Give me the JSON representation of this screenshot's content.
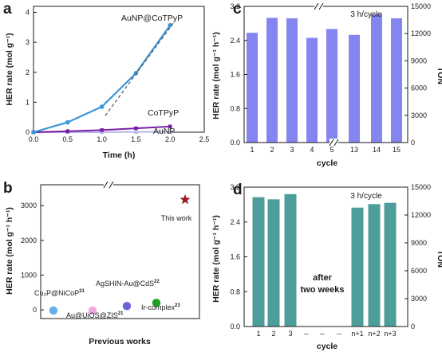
{
  "chart_data": [
    {
      "id": "a",
      "panel_label": "a",
      "type": "line",
      "xlabel": "Time (h)",
      "ylabel": "HER rate (mol g⁻¹)",
      "xlim": [
        0,
        2.5
      ],
      "ylim": [
        0,
        4.2
      ],
      "xticks": [
        "0.0",
        "0.5",
        "1.0",
        "1.5",
        "2.0",
        "2.5"
      ],
      "yticks": [
        "0",
        "1",
        "2",
        "3",
        "4"
      ],
      "series": [
        {
          "name": "AuNP@CoTPyP",
          "x": [
            0,
            0.5,
            1.0,
            1.5,
            2.0
          ],
          "y": [
            0,
            0.33,
            0.85,
            1.97,
            3.57
          ],
          "color": "#3a96d8"
        },
        {
          "name": "CoTPyP",
          "x": [
            0,
            0.5,
            1.0,
            1.5,
            2.0
          ],
          "y": [
            0,
            0.03,
            0.07,
            0.13,
            0.19
          ],
          "color": "#7a1fa6"
        },
        {
          "name": "AuNP",
          "x": [
            0,
            0.5,
            1.0,
            1.5,
            2.0
          ],
          "y": [
            0,
            0.0,
            0.0,
            0.01,
            0.01
          ],
          "color": "#b8b8e8"
        }
      ],
      "dashed_fit": {
        "x": [
          1.05,
          2.05
        ],
        "y": [
          0.55,
          3.65
        ]
      }
    },
    {
      "id": "c",
      "panel_label": "c",
      "type": "bar",
      "annotation": "3 h/cycle",
      "xlabel": "cycle",
      "ylabel": "HER rate (mol g⁻¹ h⁻¹)",
      "ylabel_right": "TON",
      "ylim": [
        0,
        3.2
      ],
      "ylim_right": [
        0,
        15000
      ],
      "yticks": [
        "0.0",
        "0.8",
        "1.6",
        "2.4",
        "3.2"
      ],
      "yticks_right": [
        "0",
        "3000",
        "6000",
        "9000",
        "12000",
        "15000"
      ],
      "categories": [
        "1",
        "2",
        "3",
        "4",
        "5",
        "13",
        "14",
        "15"
      ],
      "values": [
        2.58,
        2.93,
        2.92,
        2.46,
        2.67,
        2.53,
        3.02,
        2.92
      ],
      "color": "#8585f2"
    },
    {
      "id": "b",
      "panel_label": "b",
      "type": "scatter",
      "xlabel": "Previous works",
      "ylabel": "HER rate (mol g⁻¹ h⁻¹)",
      "ylim": [
        -250,
        3600
      ],
      "yticks": [
        "0",
        "1000",
        "2000",
        "3000"
      ],
      "points": [
        {
          "label": "Cu₂P@NiCoP",
          "ref": "31",
          "y": -20,
          "color": "#6aaee8"
        },
        {
          "label": "Au@UiOS@ZIS",
          "ref": "21",
          "y": -20,
          "color": "#f0a8e0"
        },
        {
          "label": "AgSHIN-Au@CdS",
          "ref": "22",
          "y": 110,
          "color": "#6a62d8"
        },
        {
          "label": "Ir-complex",
          "ref": "23",
          "y": 200,
          "color": "#1fa01f"
        },
        {
          "label": "This work",
          "ref": "",
          "y": 3170,
          "color": "#9b1b22"
        }
      ]
    },
    {
      "id": "d",
      "panel_label": "d",
      "type": "bar",
      "annotation": "3 h/cycle",
      "gap_label": [
        "after",
        "two weeks"
      ],
      "xlabel": "cycle",
      "ylabel": "HER rate (mol g⁻¹ h⁻¹)",
      "ylabel_right": "TON",
      "ylim": [
        0,
        3.2
      ],
      "ylim_right": [
        0,
        15000
      ],
      "yticks": [
        "0.0",
        "0.8",
        "1.6",
        "2.4",
        "3.2"
      ],
      "yticks_right": [
        "0",
        "3000",
        "6000",
        "9000",
        "12000",
        "15000"
      ],
      "categories": [
        "1",
        "2",
        "3",
        "--",
        "--",
        "--",
        "n+1",
        "n+2",
        "n+3"
      ],
      "values": [
        2.97,
        2.92,
        3.04,
        null,
        null,
        null,
        2.73,
        2.81,
        2.84
      ],
      "color": "#4d9e9a"
    }
  ]
}
